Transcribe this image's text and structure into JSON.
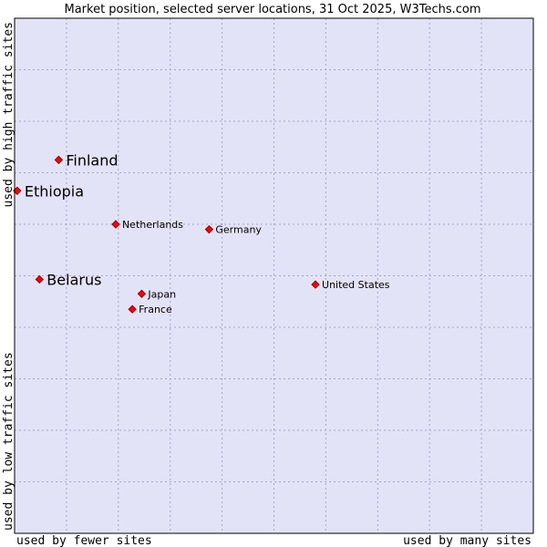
{
  "chart_data": {
    "type": "scatter",
    "title": "Market position, selected server locations, 31 Oct 2025, W3Techs.com",
    "xlabel_low": "used by fewer sites",
    "xlabel_high": "used by many sites",
    "ylabel_low": "used by low traffic sites",
    "ylabel_high": "used by high traffic sites",
    "xlim": [
      0,
      100
    ],
    "ylim": [
      0,
      100
    ],
    "grid": true,
    "colors": {
      "plot_background": "#e3e3f8",
      "grid": "#a6a6c8",
      "point": "#ff0000",
      "point_outline": "#990000",
      "border": "#000000"
    },
    "points": [
      {
        "label": "Finland",
        "x": 8.5,
        "y": 72.5,
        "emphasis": true
      },
      {
        "label": "Ethiopia",
        "x": 0.5,
        "y": 66.5,
        "emphasis": true
      },
      {
        "label": "Netherlands",
        "x": 19.5,
        "y": 60.0,
        "emphasis": false
      },
      {
        "label": "Germany",
        "x": 37.5,
        "y": 59.0,
        "emphasis": false
      },
      {
        "label": "Belarus",
        "x": 4.8,
        "y": 49.3,
        "emphasis": true
      },
      {
        "label": "United States",
        "x": 58.0,
        "y": 48.3,
        "emphasis": false
      },
      {
        "label": "Japan",
        "x": 24.5,
        "y": 46.5,
        "emphasis": false
      },
      {
        "label": "France",
        "x": 22.7,
        "y": 43.5,
        "emphasis": false
      }
    ]
  }
}
